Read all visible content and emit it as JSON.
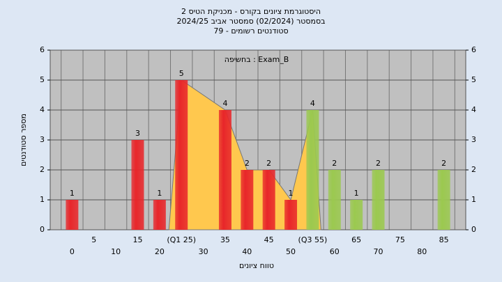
{
  "chart_data": {
    "type": "bar",
    "title_lines": [
      "היסטוגרמת ציונים בקורס - מכניקת הטיס 2",
      "בסמסטר (02/2024) סמסטר אביב 2024/25",
      "79 - סטודנטים רשומים"
    ],
    "annotation": "בחשיפה : Exam_B",
    "xlabel": "טווח ציונים",
    "ylabel": "מספר סטודנטים",
    "categories": [
      "0",
      "5",
      "10",
      "15",
      "20",
      "(Q1 25)",
      "30",
      "35",
      "40",
      "45",
      "50",
      "(Q3 55)",
      "60",
      "65",
      "70",
      "75",
      "80",
      "85"
    ],
    "values": [
      1,
      0,
      0,
      3,
      1,
      5,
      0,
      4,
      2,
      2,
      1,
      4,
      2,
      1,
      2,
      0,
      0,
      2
    ],
    "colors": [
      "#e8262a",
      "#e8262a",
      "#e8262a",
      "#e8262a",
      "#e8262a",
      "#e8262a",
      "#e8262a",
      "#e8262a",
      "#e8262a",
      "#e8262a",
      "#e8262a",
      "#9bc94f",
      "#9bc94f",
      "#9bc94f",
      "#9bc94f",
      "#9bc94f",
      "#9bc94f",
      "#9bc94f"
    ],
    "quartile_fill": "#ffc84e",
    "ylim": [
      0,
      6
    ],
    "yticks": [
      0,
      1,
      2,
      3,
      4,
      5,
      6
    ],
    "grid": true
  }
}
